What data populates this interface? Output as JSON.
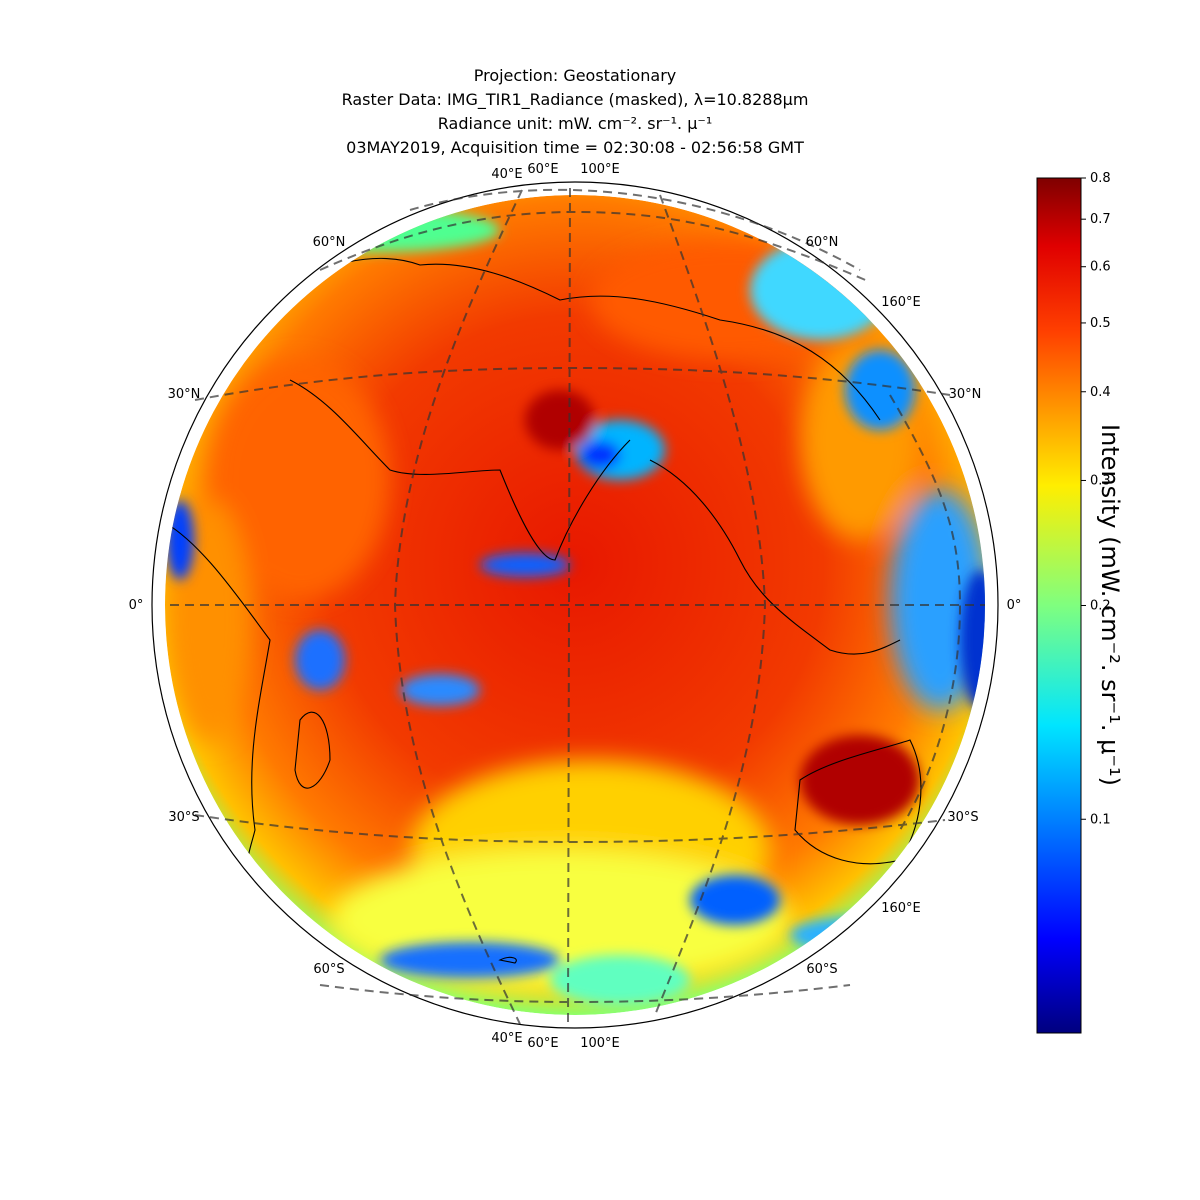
{
  "title": {
    "line1": "Projection: Geostationary",
    "line2": "Raster Data: IMG_TIR1_Radiance (masked), λ=10.8288μm",
    "line3": "Radiance unit: mW. cm⁻². sr⁻¹. μ⁻¹",
    "line4": "03MAY2019, Acquisition time = 02:30:08 - 02:56:58 GMT"
  },
  "map": {
    "projection": "Geostationary",
    "colormap": "jet",
    "gridlines": "dashed",
    "coastlines": true,
    "borders": true
  },
  "graticule_labels": {
    "top": [
      "40°E",
      "60°E",
      "100°E"
    ],
    "bottom": [
      "40°E",
      "60°E",
      "100°E"
    ],
    "left": [
      "60°N",
      "30°N",
      "0°",
      "30°S",
      "60°S"
    ],
    "right": [
      "60°N",
      "160°E",
      "30°N",
      "0°",
      "30°S",
      "160°E",
      "60°S"
    ]
  },
  "colorbar": {
    "label": "Intensity (mW. cm⁻². sr⁻¹. μ⁻¹)",
    "range": [
      0.05,
      0.8
    ],
    "ticks": [
      "0.8",
      "0.7",
      "0.6",
      "0.5",
      "0.4",
      "0.3",
      "0.2",
      "0.1"
    ],
    "colors": [
      "#7f0000",
      "#ff0000",
      "#ff7f00",
      "#ffff00",
      "#7fff7f",
      "#00ffff",
      "#007fff",
      "#0000ff",
      "#00007f"
    ]
  }
}
